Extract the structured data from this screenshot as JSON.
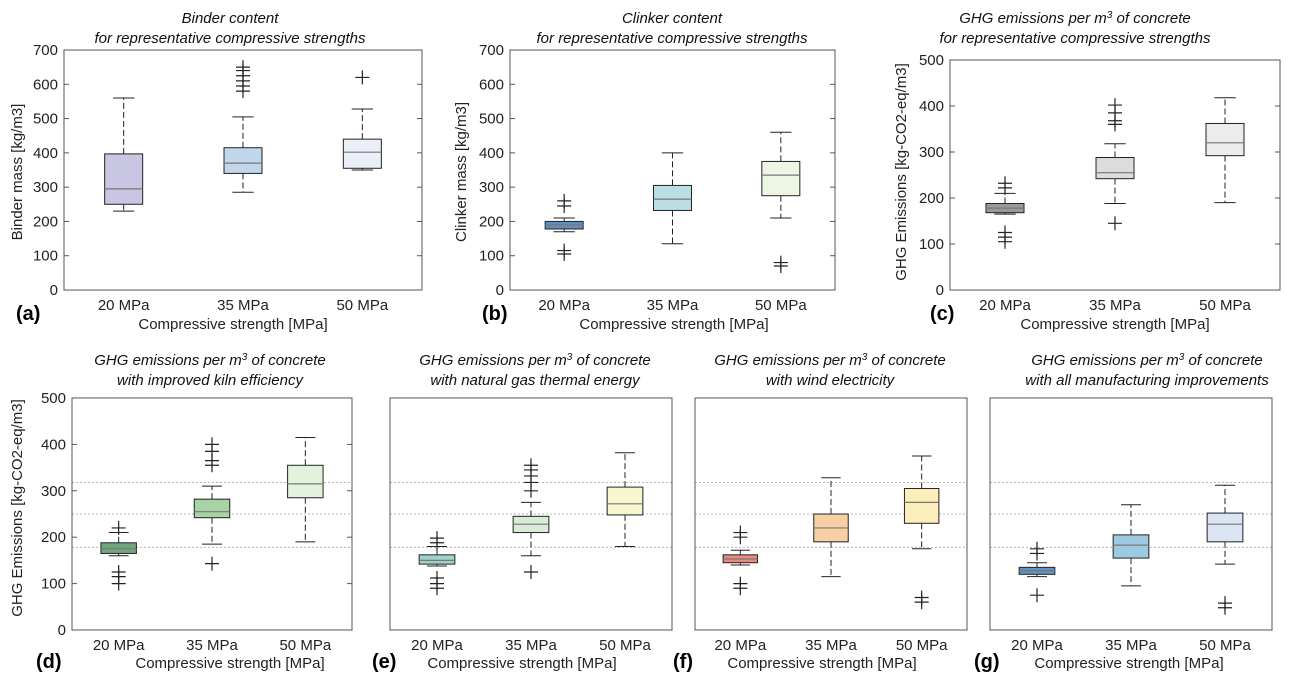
{
  "chart_data": [
    {
      "type": "box",
      "panel_label": "(a)",
      "title": [
        "Binder content",
        "for representative compressive strengths"
      ],
      "xlabel": "Compressive strength [MPa]",
      "ylabel": "Binder mass [kg/m3]",
      "ylim": [
        0,
        700
      ],
      "yticks": [
        0,
        100,
        200,
        300,
        400,
        500,
        600,
        700
      ],
      "grid": false,
      "categories": [
        "20 MPa",
        "35 MPa",
        "50 MPa"
      ],
      "colors": [
        "#c9c6e3",
        "#c2d6ec",
        "#eaeff8"
      ],
      "boxes": [
        {
          "low": 230,
          "q1": 250,
          "median": 295,
          "q3": 397,
          "high": 560,
          "outliers": []
        },
        {
          "low": 285,
          "q1": 340,
          "median": 370,
          "q3": 415,
          "high": 505,
          "outliers": [
            580,
            595,
            610,
            625,
            640,
            650
          ]
        },
        {
          "low": 350,
          "q1": 355,
          "median": 402,
          "q3": 440,
          "high": 528,
          "outliers": [
            620
          ]
        }
      ]
    },
    {
      "type": "box",
      "panel_label": "(b)",
      "title": [
        "Clinker content",
        "for representative compressive strengths"
      ],
      "xlabel": "Compressive strength [MPa]",
      "ylabel": "Clinker mass [kg/m3]",
      "ylim": [
        0,
        700
      ],
      "yticks": [
        0,
        100,
        200,
        300,
        400,
        500,
        600,
        700
      ],
      "grid": false,
      "categories": [
        "20 MPa",
        "35 MPa",
        "50 MPa"
      ],
      "colors": [
        "#5f8fc0",
        "#b9dfe5",
        "#ecf6e3"
      ],
      "boxes": [
        {
          "low": 170,
          "q1": 178,
          "median": 190,
          "q3": 200,
          "high": 210,
          "outliers": [
            105,
            115,
            245,
            260
          ]
        },
        {
          "low": 135,
          "q1": 232,
          "median": 265,
          "q3": 305,
          "high": 400,
          "outliers": []
        },
        {
          "low": 210,
          "q1": 275,
          "median": 335,
          "q3": 375,
          "high": 460,
          "outliers": [
            70,
            80
          ]
        }
      ]
    },
    {
      "type": "box",
      "panel_label": "(c)",
      "title": [
        "GHG emissions per m3 of concrete",
        "for representative compressive strengths"
      ],
      "xlabel": "Compressive strength [MPa]",
      "ylabel": "GHG Emissions [kg-CO2-eq/m3]",
      "ylim": [
        0,
        500
      ],
      "yticks": [
        0,
        100,
        200,
        300,
        400,
        500
      ],
      "grid": false,
      "categories": [
        "20 MPa",
        "35 MPa",
        "50 MPa"
      ],
      "colors": [
        "#9a9a9a",
        "#dcdcdc",
        "#ececec"
      ],
      "boxes": [
        {
          "low": 165,
          "q1": 168,
          "median": 178,
          "q3": 188,
          "high": 210,
          "outliers": [
            105,
            115,
            125,
            222,
            232
          ]
        },
        {
          "low": 188,
          "q1": 242,
          "median": 255,
          "q3": 288,
          "high": 318,
          "outliers": [
            145,
            360,
            368,
            385,
            402
          ]
        },
        {
          "low": 190,
          "q1": 292,
          "median": 320,
          "q3": 362,
          "high": 418,
          "outliers": []
        }
      ]
    },
    {
      "type": "box",
      "panel_label": "(d)",
      "title": [
        "GHG emissions per m3 of concrete",
        "with improved kiln efficiency"
      ],
      "xlabel": "Compressive strength [MPa]",
      "ylabel": "GHG Emissions [kg-CO2-eq/m3]",
      "ylim": [
        0,
        500
      ],
      "yticks": [
        0,
        100,
        200,
        300,
        400,
        500
      ],
      "grid": false,
      "reference_lines": [
        178,
        250,
        318
      ],
      "categories": [
        "20 MPa",
        "35 MPa",
        "50 MPa"
      ],
      "colors": [
        "#6fa77a",
        "#a8d3a6",
        "#e3f2dc"
      ],
      "boxes": [
        {
          "low": 160,
          "q1": 165,
          "median": 175,
          "q3": 188,
          "high": 210,
          "outliers": [
            100,
            115,
            125,
            220
          ]
        },
        {
          "low": 185,
          "q1": 242,
          "median": 255,
          "q3": 282,
          "high": 310,
          "outliers": [
            143,
            355,
            365,
            385,
            400
          ]
        },
        {
          "low": 190,
          "q1": 285,
          "median": 315,
          "q3": 355,
          "high": 415,
          "outliers": []
        }
      ]
    },
    {
      "type": "box",
      "panel_label": "(e)",
      "title": [
        "GHG emissions per m3 of concrete",
        "with natural gas thermal energy"
      ],
      "xlabel": "Compressive strength [MPa]",
      "ylabel": "",
      "ylim": [
        0,
        500
      ],
      "yticks": [
        0,
        100,
        200,
        300,
        400,
        500
      ],
      "grid": false,
      "reference_lines": [
        178,
        250,
        318
      ],
      "categories": [
        "20 MPa",
        "35 MPa",
        "50 MPa"
      ],
      "colors": [
        "#9fd3cc",
        "#d9ecd8",
        "#f6f6cf"
      ],
      "boxes": [
        {
          "low": 138,
          "q1": 142,
          "median": 150,
          "q3": 162,
          "high": 180,
          "outliers": [
            90,
            100,
            112,
            188,
            198
          ]
        },
        {
          "low": 160,
          "q1": 210,
          "median": 228,
          "q3": 245,
          "high": 275,
          "outliers": [
            125,
            300,
            318,
            332,
            345,
            355
          ]
        },
        {
          "low": 180,
          "q1": 248,
          "median": 272,
          "q3": 308,
          "high": 382,
          "outliers": []
        }
      ]
    },
    {
      "type": "box",
      "panel_label": "(f)",
      "title": [
        "GHG emissions per m3 of concrete",
        "with wind electricity"
      ],
      "xlabel": "Compressive strength [MPa]",
      "ylabel": "",
      "ylim": [
        0,
        500
      ],
      "yticks": [
        0,
        100,
        200,
        300,
        400,
        500
      ],
      "grid": false,
      "reference_lines": [
        178,
        250,
        318
      ],
      "categories": [
        "20 MPa",
        "35 MPa",
        "50 MPa"
      ],
      "colors": [
        "#e98a7f",
        "#f8cfa2",
        "#fbeeba"
      ],
      "boxes": [
        {
          "low": 140,
          "q1": 145,
          "median": 153,
          "q3": 162,
          "high": 172,
          "outliers": [
            90,
            100,
            200,
            210
          ]
        },
        {
          "low": 115,
          "q1": 190,
          "median": 220,
          "q3": 250,
          "high": 328,
          "outliers": []
        },
        {
          "low": 175,
          "q1": 230,
          "median": 275,
          "q3": 305,
          "high": 375,
          "outliers": [
            60,
            70
          ]
        }
      ]
    },
    {
      "type": "box",
      "panel_label": "(g)",
      "title": [
        "GHG emissions per m3 of concrete",
        "with all manufacturing improvements"
      ],
      "xlabel": "Compressive strength [MPa]",
      "ylabel": "",
      "ylim": [
        0,
        500
      ],
      "yticks": [
        0,
        100,
        200,
        300,
        400,
        500
      ],
      "grid": false,
      "reference_lines": [
        178,
        250,
        318
      ],
      "categories": [
        "20 MPa",
        "35 MPa",
        "50 MPa"
      ],
      "colors": [
        "#5e95c5",
        "#9ec9e3",
        "#dbe5f3"
      ],
      "boxes": [
        {
          "low": 115,
          "q1": 120,
          "median": 128,
          "q3": 135,
          "high": 145,
          "outliers": [
            75,
            165,
            175
          ]
        },
        {
          "low": 95,
          "q1": 155,
          "median": 183,
          "q3": 205,
          "high": 270,
          "outliers": []
        },
        {
          "low": 142,
          "q1": 190,
          "median": 228,
          "q3": 252,
          "high": 312,
          "outliers": [
            48,
            58
          ]
        }
      ]
    }
  ]
}
